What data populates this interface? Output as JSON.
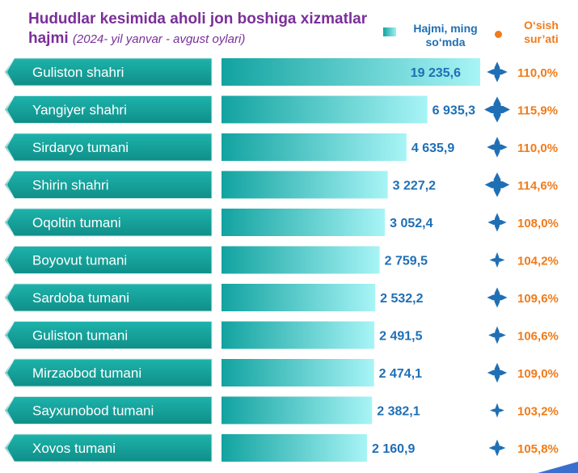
{
  "header": {
    "title": "Hududlar kesimida aholi jon boshiga xizmatlar hajmi",
    "subtitle": "(2024- yil yanvar - avgust oylari)"
  },
  "legend": {
    "volume": "Hajmi, ming so‘mda",
    "growth": "O‘sish sur’ati"
  },
  "colors": {
    "title": "#7a2f9a",
    "label_box": "#14a19a",
    "bar_start": "#12a3a0",
    "bar_end": "#a8f4f6",
    "value_text": "#1f6fb5",
    "growth_text": "#f07b1a",
    "icon": "#1f6fb5"
  },
  "chart_data": {
    "type": "bar",
    "orientation": "horizontal",
    "categories": [
      "Guliston shahri",
      "Yangiyer shahri",
      "Sirdaryo tumani",
      "Shirin shahri",
      "Oqoltin tumani",
      "Boyovut tumani",
      "Sardoba tumani",
      "Guliston tumani",
      "Mirzaobod tumani",
      "Sayxunobod tumani",
      "Xovos tumani"
    ],
    "series": [
      {
        "name": "Hajmi, ming so‘mda",
        "values": [
          19235.6,
          6935.3,
          4635.9,
          3227.2,
          3052.4,
          2759.5,
          2532.2,
          2491.5,
          2474.1,
          2382.1,
          2160.9
        ],
        "labels": [
          "19 235,6",
          "6 935,3",
          "4 635,9",
          "3 227,2",
          "3 052,4",
          "2 759,5",
          "2 532,2",
          "2 491,5",
          "2 474,1",
          "2 382,1",
          "2 160,9"
        ]
      },
      {
        "name": "O‘sish sur’ati",
        "values": [
          110.0,
          115.9,
          110.0,
          114.6,
          108.0,
          104.2,
          109.6,
          106.6,
          109.0,
          103.2,
          105.8
        ],
        "labels": [
          "110,0%",
          "115,9%",
          "110,0%",
          "114,6%",
          "108,0%",
          "104,2%",
          "109,6%",
          "106,6%",
          "109,0%",
          "103,2%",
          "105,8%"
        ]
      }
    ],
    "axis_scale": "compressed"
  }
}
